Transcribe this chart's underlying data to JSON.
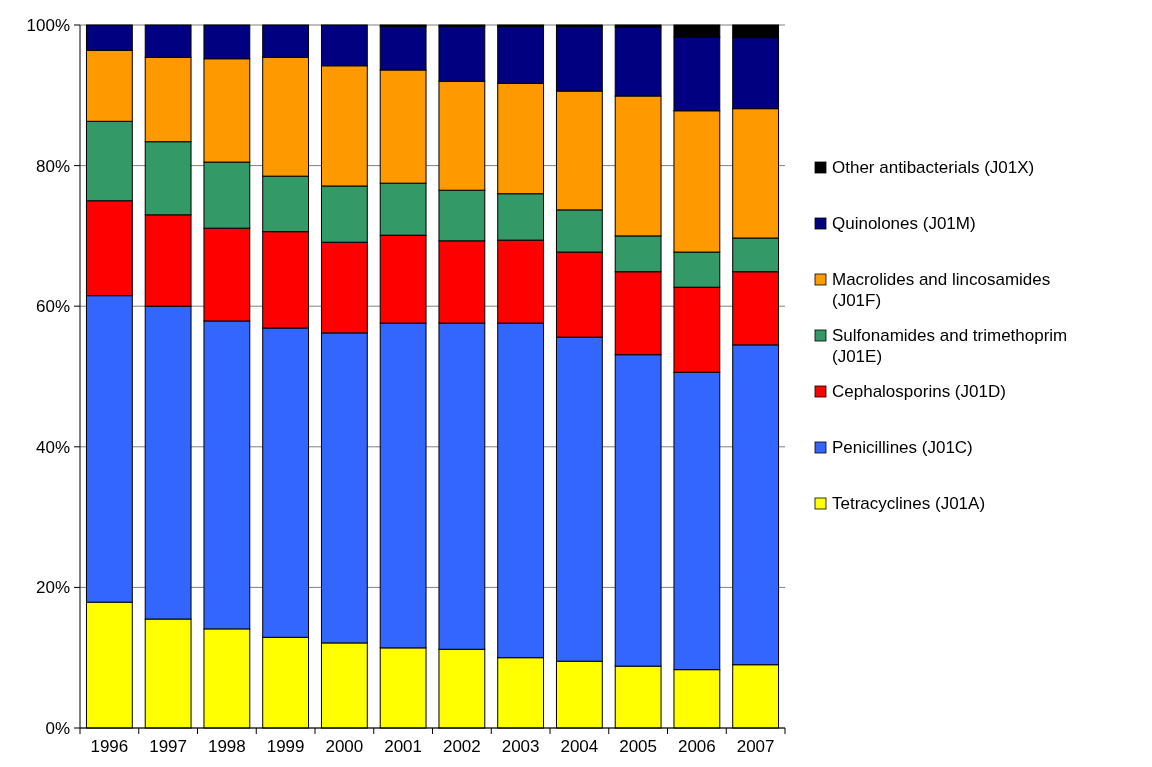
{
  "chart_data": {
    "type": "bar",
    "stacked": true,
    "categories": [
      "1996",
      "1997",
      "1998",
      "1999",
      "2000",
      "2001",
      "2002",
      "2003",
      "2004",
      "2005",
      "2006",
      "2007"
    ],
    "series": [
      {
        "name": "Tetracyclines (J01A)",
        "color": "#ffff00",
        "values": [
          17.9,
          15.5,
          14.1,
          12.9,
          12.1,
          11.4,
          11.2,
          10.0,
          9.5,
          8.8,
          8.3,
          9.0
        ]
      },
      {
        "name": "Penicillines (J01C)",
        "color": "#3366ff",
        "values": [
          43.6,
          44.5,
          43.8,
          44.0,
          44.1,
          46.2,
          46.4,
          47.6,
          46.1,
          44.3,
          42.3,
          45.5
        ]
      },
      {
        "name": "Cephalosporins (J01D)",
        "color": "#ff0000",
        "values": [
          13.5,
          13.0,
          13.2,
          13.7,
          12.9,
          12.5,
          11.7,
          11.8,
          12.1,
          11.8,
          12.1,
          10.4
        ]
      },
      {
        "name": "Sulfonamides and trimethoprim (J01E)",
        "color": "#339966",
        "values": [
          11.3,
          10.4,
          9.4,
          7.9,
          8.0,
          7.4,
          7.2,
          6.6,
          6.0,
          5.1,
          5.0,
          4.8
        ]
      },
      {
        "name": "Macrolides and lincosamides (J01F)",
        "color": "#ff9900",
        "values": [
          10.1,
          12.0,
          14.7,
          16.9,
          17.1,
          16.1,
          15.5,
          15.7,
          16.9,
          19.9,
          20.1,
          18.4
        ]
      },
      {
        "name": "Quinolones (J01M)",
        "color": "#000080",
        "values": [
          3.6,
          4.6,
          4.8,
          4.6,
          5.8,
          6.2,
          7.8,
          8.1,
          9.2,
          9.8,
          10.5,
          10.1
        ]
      },
      {
        "name": "Other antibacterials (J01X)",
        "color": "#000000",
        "values": [
          0,
          0,
          0,
          0,
          0,
          0.2,
          0.2,
          0.2,
          0.2,
          0.3,
          1.7,
          1.8
        ]
      }
    ],
    "ylim": [
      0,
      100
    ],
    "yticks": [
      {
        "value": 0,
        "label": "0%"
      },
      {
        "value": 20,
        "label": "20%"
      },
      {
        "value": 40,
        "label": "40%"
      },
      {
        "value": 60,
        "label": "60%"
      },
      {
        "value": 80,
        "label": "80%"
      },
      {
        "value": 100,
        "label": "100%"
      }
    ],
    "grid": "y",
    "legend": "right"
  }
}
